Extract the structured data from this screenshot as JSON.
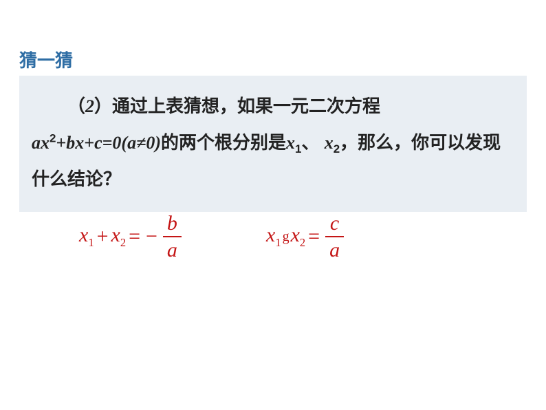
{
  "heading": "猜一猜",
  "paragraph": {
    "prefix": "（",
    "num": "2",
    "after_num": "）通过上表猜想，如果一元二次方程",
    "eq_a": "a",
    "eq_x": "x",
    "eq_exp": "2",
    "eq_plus1": "+",
    "eq_b": "b",
    "eq_x2": "x",
    "eq_plus2": "+",
    "eq_c": "c",
    "eq_eq": "=0(",
    "eq_a2": "a",
    "eq_neq": "≠0)",
    "mid": "的两个根分别是",
    "x1_x": "x",
    "x1_sub": "1",
    "sep": "、 ",
    "x2_x": "x",
    "x2_sub": "2",
    "tail": "，那么，你可以发现什么结论？"
  },
  "equation1": {
    "x": "x",
    "sub1": "1",
    "plus": "+",
    "sub2": "2",
    "eq": "=",
    "neg": "−",
    "num": "b",
    "den": "a"
  },
  "equation2": {
    "x": "x",
    "sub1": "1",
    "dot": "g",
    "sub2": "2",
    "eq": "=",
    "num": "c",
    "den": "a"
  },
  "colors": {
    "heading": "#2e6da4",
    "box_bg": "#e9eef3",
    "equation": "#c41515",
    "text": "#222222"
  }
}
